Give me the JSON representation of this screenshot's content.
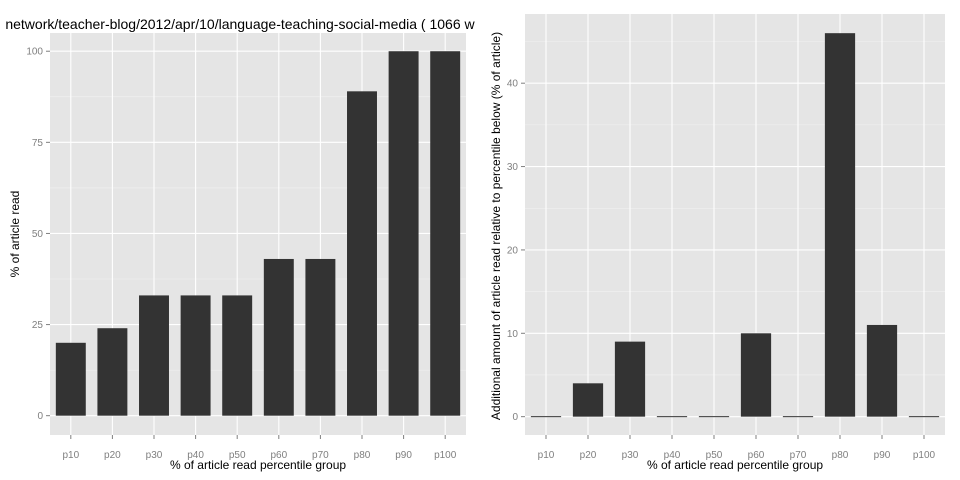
{
  "colors": {
    "panel": "#e5e5e5",
    "grid_major": "#ffffff",
    "grid_minor": "#f2f2f2",
    "bar": "#333333",
    "tick": "#7f7f7f"
  },
  "chart_data": [
    {
      "type": "bar",
      "title": "network/teacher-blog/2012/apr/10/language-teaching-social-media ( 1066 w",
      "xlabel": "% of article read percentile group",
      "ylabel": "% of article read",
      "categories": [
        "p10",
        "p20",
        "p30",
        "p40",
        "p50",
        "p60",
        "p70",
        "p80",
        "p90",
        "p100"
      ],
      "values": [
        20,
        24,
        33,
        33,
        33,
        43,
        43,
        89,
        100,
        100
      ],
      "ylim": [
        -5.3,
        105
      ],
      "yticks": [
        0,
        25,
        50,
        75,
        100
      ],
      "yticklabels": [
        "0",
        "25",
        "50",
        "75",
        "100"
      ],
      "grid": true
    },
    {
      "type": "bar",
      "title": "",
      "xlabel": "% of article read percentile group",
      "ylabel": "Additional amount of article read relative to percentile below (% of article)",
      "categories": [
        "p10",
        "p20",
        "p30",
        "p40",
        "p50",
        "p60",
        "p70",
        "p80",
        "p90",
        "p100"
      ],
      "values": [
        0,
        4,
        9,
        0,
        0,
        10,
        0,
        46,
        11,
        0
      ],
      "ylim": [
        -2.2,
        48.3
      ],
      "yticks": [
        0,
        10,
        20,
        30,
        40
      ],
      "yticklabels": [
        "0",
        "10",
        "20",
        "30",
        "40"
      ],
      "grid": true
    }
  ]
}
